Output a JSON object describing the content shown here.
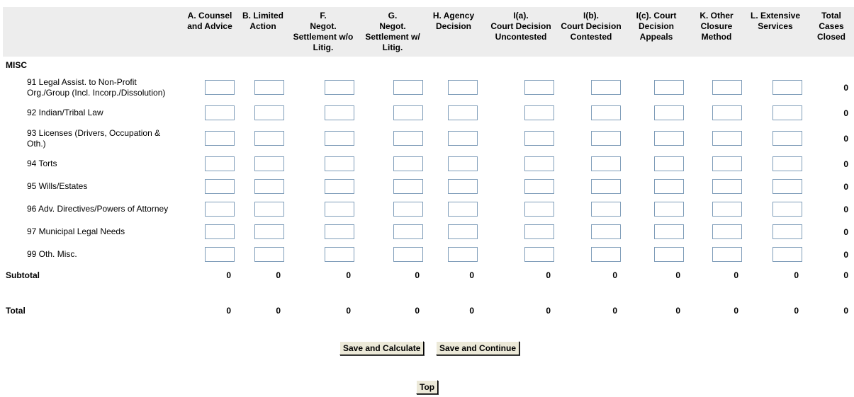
{
  "columns": [
    "A. Counsel\nand Advice",
    "B. Limited\nAction",
    "F.\nNegot.\nSettlement w/o\nLitig.",
    "G.\nNegot.\nSettlement w/\nLitig.",
    "H. Agency\nDecision",
    "I(a).\nCourt Decision\nUncontested",
    "I(b).\nCourt Decision\nContested",
    "I(c). Court\nDecision\nAppeals",
    "K. Other\nClosure\nMethod",
    "L. Extensive\nServices",
    "Total\nCases\nClosed"
  ],
  "section_title": "MISC",
  "rows": [
    {
      "label": "91 Legal Assist. to Non-Profit Org./Group (Incl. Incorp./Dissolution)",
      "total": "0"
    },
    {
      "label": "92 Indian/Tribal Law",
      "total": "0"
    },
    {
      "label": "93 Licenses (Drivers, Occupation & Oth.)",
      "total": "0"
    },
    {
      "label": "94 Torts",
      "total": "0"
    },
    {
      "label": "95 Wills/Estates",
      "total": "0"
    },
    {
      "label": "96 Adv. Directives/Powers of Attorney",
      "total": "0"
    },
    {
      "label": "97 Municipal Legal Needs",
      "total": "0"
    },
    {
      "label": "99 Oth. Misc.",
      "total": "0"
    }
  ],
  "subtotal": {
    "label": "Subtotal",
    "values": [
      "0",
      "0",
      "0",
      "0",
      "0",
      "0",
      "0",
      "0",
      "0",
      "0",
      "0"
    ]
  },
  "total": {
    "label": "Total",
    "values": [
      "0",
      "0",
      "0",
      "0",
      "0",
      "0",
      "0",
      "0",
      "0",
      "0",
      "0"
    ]
  },
  "buttons": {
    "save_calc": "Save and Calculate",
    "save_continue": "Save and Continue",
    "top": "Top"
  }
}
